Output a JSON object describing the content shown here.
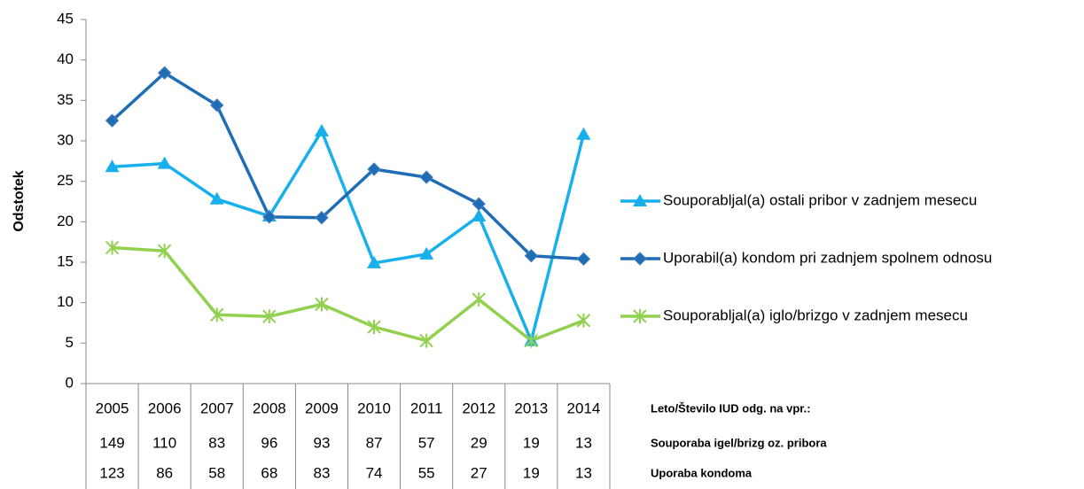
{
  "chart_data": {
    "type": "line",
    "y_label": "Odstotek",
    "categories": [
      "2005",
      "2006",
      "2007",
      "2008",
      "2009",
      "2010",
      "2011",
      "2012",
      "2013",
      "2014"
    ],
    "series": [
      {
        "name": "Souporabljal(a) ostali pribor v zadnjem mesecu",
        "color": "#18b0ec",
        "marker": "triangle",
        "values": [
          26.8,
          27.2,
          22.8,
          20.7,
          31.2,
          14.9,
          16.0,
          20.7,
          5.3,
          30.8
        ]
      },
      {
        "name": "Uporabil(a) kondom pri zadnjem spolnem odnosu",
        "color": "#1f6db4",
        "marker": "diamond",
        "values": [
          32.5,
          38.4,
          34.4,
          20.6,
          20.5,
          26.5,
          25.5,
          22.2,
          15.8,
          15.4
        ]
      },
      {
        "name": "Souporabljal(a) iglo/brizgo v zadnjem mesecu",
        "color": "#92d050",
        "marker": "star",
        "values": [
          16.8,
          16.4,
          8.5,
          8.3,
          9.8,
          7.0,
          5.3,
          10.4,
          5.3,
          7.8
        ]
      }
    ],
    "ylim": [
      0,
      45
    ],
    "yticks": [
      0,
      5,
      10,
      15,
      20,
      25,
      30,
      35,
      40,
      45
    ],
    "grid": false,
    "legend": "right",
    "data_table": {
      "header_label": "Leto/Število IUD odg. na vpr.:",
      "rows": [
        {
          "label": "Souporaba igel/brizg oz. pribora",
          "values": [
            "149",
            "110",
            "83",
            "96",
            "93",
            "87",
            "57",
            "29",
            "19",
            "13"
          ]
        },
        {
          "label": "Uporaba kondoma",
          "values": [
            "123",
            "86",
            "58",
            "68",
            "83",
            "74",
            "55",
            "27",
            "19",
            "13"
          ]
        }
      ]
    }
  }
}
